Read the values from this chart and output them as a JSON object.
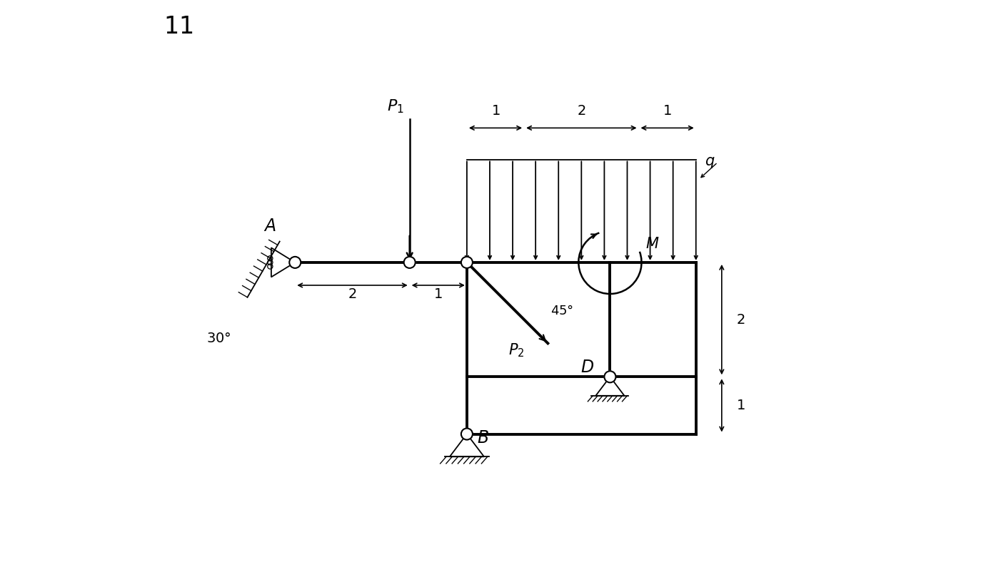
{
  "fig_width": 13.88,
  "fig_height": 8.16,
  "dpi": 100,
  "bg_color": "#ffffff",
  "line_color": "#000000",
  "lw_beam": 2.8,
  "lw_thin": 1.3,
  "lw_arrow": 1.5,
  "xA": 0.0,
  "yBeam": 0.0,
  "xHinge": 2.0,
  "xJunction": 3.0,
  "xRight": 7.0,
  "xLoadStart": 3.0,
  "xSub1": 4.0,
  "xSub2": 6.0,
  "xLoadEnd": 7.0,
  "yLoad": 1.8,
  "xD_inner": 5.5,
  "yD": -2.0,
  "yBottom": -3.0,
  "yB": -3.0,
  "xB": 3.0,
  "note": "Structure: beam from xA to xRight at yBeam=0; junction at xJunction where vertical goes to B; right enclosure box from xJunction to xRight, yBeam to yBottom; D on inner vertical at xD_inner from yBeam to yD; roller at A (angled 30), pin at B, pin at D"
}
